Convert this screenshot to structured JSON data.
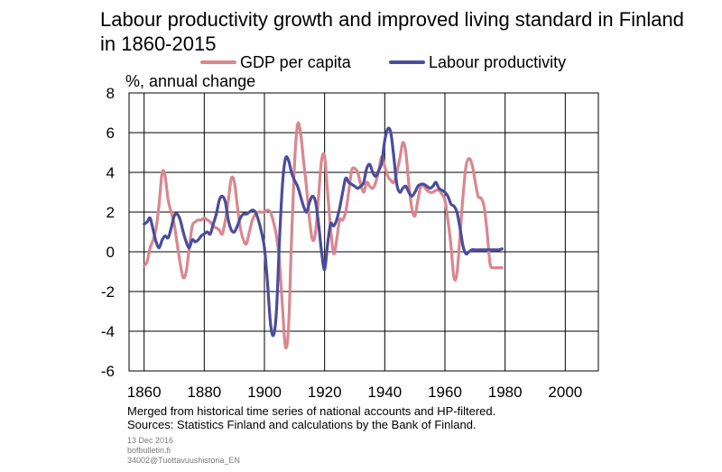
{
  "header": {
    "title": "Labour productivity growth and improved living standard in Finland in 1860-2015"
  },
  "colors": {
    "gdp": "#d9878f",
    "labour": "#4b4c9c",
    "grid": "#000000"
  },
  "chart_data": {
    "type": "line",
    "title": "Labour productivity growth and improved living standard in Finland in 1860-2015",
    "ylabel": "%, annual change",
    "xlabel": "",
    "xlim": [
      1855,
      2011
    ],
    "ylim": [
      -6,
      8
    ],
    "x_ticks": [
      1860,
      1880,
      1900,
      1920,
      1940,
      1960,
      1980,
      2000
    ],
    "y_ticks": [
      8,
      6,
      4,
      2,
      0,
      -2,
      -4,
      -6
    ],
    "grid": true,
    "legend": "top",
    "series": [
      {
        "name": "GDP per capita",
        "color": "#d9878f",
        "points": [
          [
            1860,
            -0.7
          ],
          [
            1861,
            -0.5
          ],
          [
            1862,
            0.2
          ],
          [
            1863,
            0.6
          ],
          [
            1864,
            1.2
          ],
          [
            1865,
            2.4
          ],
          [
            1866,
            4.0
          ],
          [
            1867,
            3.8
          ],
          [
            1868,
            2.6
          ],
          [
            1869,
            2.0
          ],
          [
            1870,
            1.4
          ],
          [
            1871,
            0.4
          ],
          [
            1872,
            -0.6
          ],
          [
            1873,
            -1.3
          ],
          [
            1874,
            -1.0
          ],
          [
            1875,
            0.2
          ],
          [
            1876,
            1.3
          ],
          [
            1877,
            1.5
          ],
          [
            1878,
            1.6
          ],
          [
            1879,
            1.6
          ],
          [
            1880,
            1.7
          ],
          [
            1881,
            1.6
          ],
          [
            1882,
            1.5
          ],
          [
            1883,
            1.3
          ],
          [
            1884,
            1.2
          ],
          [
            1885,
            1.1
          ],
          [
            1886,
            0.9
          ],
          [
            1887,
            1.6
          ],
          [
            1888,
            2.6
          ],
          [
            1889,
            3.7
          ],
          [
            1890,
            3.5
          ],
          [
            1891,
            2.3
          ],
          [
            1892,
            1.2
          ],
          [
            1893,
            0.6
          ],
          [
            1894,
            0.4
          ],
          [
            1895,
            1.0
          ],
          [
            1896,
            1.6
          ],
          [
            1897,
            1.9
          ],
          [
            1898,
            2.0
          ],
          [
            1899,
            2.0
          ],
          [
            1900,
            2.0
          ],
          [
            1901,
            2.1
          ],
          [
            1902,
            2.0
          ],
          [
            1903,
            1.5
          ],
          [
            1904,
            0.8
          ],
          [
            1905,
            -0.5
          ],
          [
            1906,
            -2.8
          ],
          [
            1907,
            -4.8
          ],
          [
            1908,
            -3.8
          ],
          [
            1909,
            0.6
          ],
          [
            1910,
            4.4
          ],
          [
            1911,
            6.4
          ],
          [
            1912,
            6.0
          ],
          [
            1913,
            4.6
          ],
          [
            1914,
            3.2
          ],
          [
            1915,
            1.6
          ],
          [
            1916,
            0.6
          ],
          [
            1917,
            1.0
          ],
          [
            1918,
            2.8
          ],
          [
            1919,
            4.6
          ],
          [
            1920,
            4.8
          ],
          [
            1921,
            3.0
          ],
          [
            1922,
            1.2
          ],
          [
            1923,
            -0.1
          ],
          [
            1924,
            0.6
          ],
          [
            1925,
            1.6
          ],
          [
            1926,
            1.6
          ],
          [
            1927,
            2.0
          ],
          [
            1928,
            3.0
          ],
          [
            1929,
            4.1
          ],
          [
            1930,
            4.2
          ],
          [
            1931,
            4.0
          ],
          [
            1932,
            3.4
          ],
          [
            1933,
            3.0
          ],
          [
            1934,
            3.5
          ],
          [
            1935,
            3.3
          ],
          [
            1936,
            3.2
          ],
          [
            1937,
            3.5
          ],
          [
            1938,
            4.1
          ],
          [
            1939,
            4.8
          ],
          [
            1940,
            4.3
          ],
          [
            1941,
            3.8
          ],
          [
            1942,
            3.6
          ],
          [
            1943,
            3.5
          ],
          [
            1944,
            4.0
          ],
          [
            1945,
            4.7
          ],
          [
            1946,
            5.5
          ],
          [
            1947,
            5.0
          ],
          [
            1948,
            3.4
          ],
          [
            1949,
            2.2
          ],
          [
            1950,
            1.8
          ],
          [
            1951,
            2.6
          ],
          [
            1952,
            3.3
          ],
          [
            1953,
            3.3
          ],
          [
            1954,
            3.1
          ],
          [
            1955,
            3.0
          ],
          [
            1956,
            3.0
          ],
          [
            1957,
            3.1
          ],
          [
            1958,
            3.1
          ],
          [
            1959,
            2.9
          ],
          [
            1960,
            2.6
          ],
          [
            1961,
            1.6
          ],
          [
            1962,
            0.3
          ],
          [
            1963,
            -1.3
          ],
          [
            1964,
            -1.1
          ],
          [
            1965,
            0.8
          ],
          [
            1966,
            2.8
          ],
          [
            1967,
            4.3
          ],
          [
            1968,
            4.7
          ],
          [
            1969,
            4.4
          ],
          [
            1970,
            3.6
          ],
          [
            1971,
            2.8
          ],
          [
            1972,
            2.7
          ],
          [
            1973,
            2.3
          ],
          [
            1974,
            1.0
          ],
          [
            1975,
            -0.6
          ],
          [
            1976,
            -0.8
          ],
          [
            1977,
            -0.8
          ],
          [
            1978,
            -0.8
          ],
          [
            1979,
            -0.8
          ]
        ]
      },
      {
        "name": "Labour productivity",
        "color": "#4b4c9c",
        "points": [
          [
            1860,
            1.4
          ],
          [
            1861,
            1.5
          ],
          [
            1862,
            1.7
          ],
          [
            1863,
            1.1
          ],
          [
            1864,
            0.5
          ],
          [
            1865,
            0.2
          ],
          [
            1866,
            0.6
          ],
          [
            1867,
            0.8
          ],
          [
            1868,
            0.7
          ],
          [
            1869,
            1.2
          ],
          [
            1870,
            1.8
          ],
          [
            1871,
            1.9
          ],
          [
            1872,
            1.6
          ],
          [
            1873,
            1.0
          ],
          [
            1874,
            0.5
          ],
          [
            1875,
            0.2
          ],
          [
            1876,
            0.6
          ],
          [
            1877,
            0.5
          ],
          [
            1878,
            0.6
          ],
          [
            1879,
            0.8
          ],
          [
            1880,
            0.9
          ],
          [
            1881,
            1.0
          ],
          [
            1882,
            0.9
          ],
          [
            1883,
            1.4
          ],
          [
            1884,
            1.9
          ],
          [
            1885,
            2.6
          ],
          [
            1886,
            2.8
          ],
          [
            1887,
            2.5
          ],
          [
            1888,
            1.6
          ],
          [
            1889,
            1.1
          ],
          [
            1890,
            1.0
          ],
          [
            1891,
            1.3
          ],
          [
            1892,
            1.7
          ],
          [
            1893,
            1.9
          ],
          [
            1894,
            1.9
          ],
          [
            1895,
            2.0
          ],
          [
            1896,
            2.1
          ],
          [
            1897,
            2.0
          ],
          [
            1898,
            1.6
          ],
          [
            1899,
            1.0
          ],
          [
            1900,
            0.2
          ],
          [
            1901,
            -1.5
          ],
          [
            1902,
            -3.6
          ],
          [
            1903,
            -4.2
          ],
          [
            1904,
            -3.0
          ],
          [
            1905,
            0.6
          ],
          [
            1906,
            3.4
          ],
          [
            1907,
            4.7
          ],
          [
            1908,
            4.6
          ],
          [
            1909,
            4.0
          ],
          [
            1910,
            3.6
          ],
          [
            1911,
            3.3
          ],
          [
            1912,
            2.8
          ],
          [
            1913,
            2.3
          ],
          [
            1914,
            2.0
          ],
          [
            1915,
            2.5
          ],
          [
            1916,
            2.8
          ],
          [
            1917,
            2.5
          ],
          [
            1918,
            1.4
          ],
          [
            1919,
            0.0
          ],
          [
            1920,
            -0.9
          ],
          [
            1921,
            0.4
          ],
          [
            1922,
            1.4
          ],
          [
            1923,
            1.3
          ],
          [
            1924,
            1.6
          ],
          [
            1925,
            2.2
          ],
          [
            1926,
            3.0
          ],
          [
            1927,
            3.7
          ],
          [
            1928,
            3.5
          ],
          [
            1929,
            3.4
          ],
          [
            1930,
            3.3
          ],
          [
            1931,
            3.2
          ],
          [
            1932,
            3.3
          ],
          [
            1933,
            3.5
          ],
          [
            1934,
            4.2
          ],
          [
            1935,
            4.4
          ],
          [
            1936,
            4.0
          ],
          [
            1937,
            3.8
          ],
          [
            1938,
            4.1
          ],
          [
            1939,
            4.5
          ],
          [
            1940,
            5.6
          ],
          [
            1941,
            6.2
          ],
          [
            1942,
            6.0
          ],
          [
            1943,
            4.8
          ],
          [
            1944,
            3.4
          ],
          [
            1945,
            3.0
          ],
          [
            1946,
            3.2
          ],
          [
            1947,
            3.3
          ],
          [
            1948,
            3.0
          ],
          [
            1949,
            2.8
          ],
          [
            1950,
            3.0
          ],
          [
            1951,
            3.3
          ],
          [
            1952,
            3.4
          ],
          [
            1953,
            3.4
          ],
          [
            1954,
            3.3
          ],
          [
            1955,
            3.2
          ],
          [
            1956,
            3.3
          ],
          [
            1957,
            3.5
          ],
          [
            1958,
            3.2
          ],
          [
            1959,
            3.1
          ],
          [
            1960,
            3.0
          ],
          [
            1961,
            2.8
          ],
          [
            1962,
            2.4
          ],
          [
            1963,
            2.3
          ],
          [
            1964,
            2.0
          ],
          [
            1965,
            1.2
          ],
          [
            1966,
            0.3
          ],
          [
            1967,
            -0.1
          ],
          [
            1968,
            0.0
          ],
          [
            1969,
            0.1
          ],
          [
            1970,
            0.1
          ],
          [
            1971,
            0.1
          ],
          [
            1972,
            0.1
          ],
          [
            1973,
            0.1
          ],
          [
            1974,
            0.1
          ],
          [
            1975,
            0.1
          ],
          [
            1976,
            0.1
          ],
          [
            1977,
            0.1
          ],
          [
            1978,
            0.1
          ],
          [
            1979,
            0.15
          ]
        ]
      }
    ]
  },
  "legend": {
    "gdp_label": "GDP per capita",
    "labour_label": "Labour productivity"
  },
  "notes": {
    "line1": "Merged from historical time series of national accounts and HP-filtered.",
    "line2": "Sources: Statistics Finland and calculations by the Bank of Finland."
  },
  "meta": {
    "date": "13 Dec 2016",
    "site": "bofbulletin.fi",
    "code": "34002@Tuottavuushistoria_EN"
  }
}
